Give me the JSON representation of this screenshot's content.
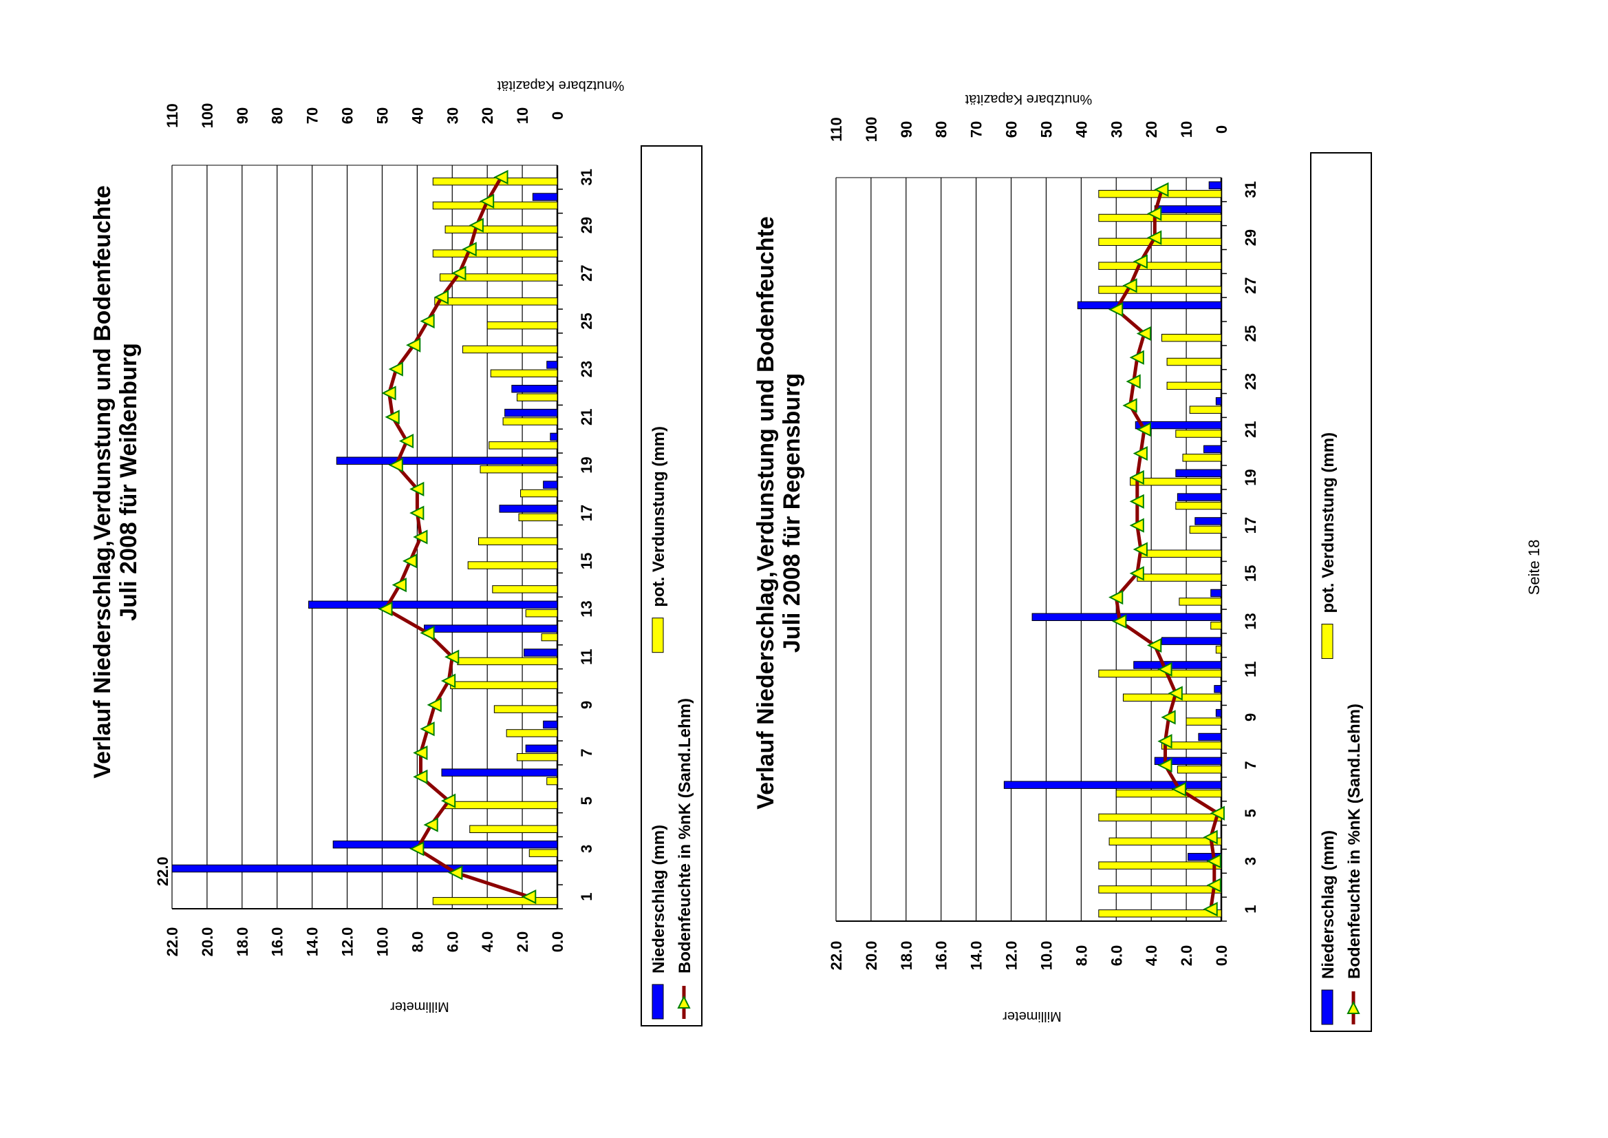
{
  "page_label": "Seite 18",
  "chart_data": [
    {
      "type": "bar",
      "title": "Verlauf Niederschlag,Verdunstung und Bodenfeuchte",
      "subtitle": "Juli 2008 für Weißenburg",
      "xlabel": "",
      "ylabel": "Millimeter",
      "y2label": "%nutzbare Kapazität",
      "ylim": [
        0,
        22
      ],
      "y2lim": [
        0,
        110
      ],
      "y_ticks": [
        "0.0",
        "2.0",
        "4.0",
        "6.0",
        "8.0",
        "10.0",
        "12.0",
        "14.0",
        "16.0",
        "18.0",
        "20.0",
        "22.0"
      ],
      "y2_ticks": [
        "0",
        "10",
        "20",
        "30",
        "40",
        "50",
        "60",
        "70",
        "80",
        "90",
        "100",
        "110"
      ],
      "x_ticks": [
        "1",
        "3",
        "5",
        "7",
        "9",
        "11",
        "13",
        "15",
        "17",
        "19",
        "21",
        "23",
        "25",
        "27",
        "29",
        "31"
      ],
      "annotation": "22.0",
      "x": [
        1,
        2,
        3,
        4,
        5,
        6,
        7,
        8,
        9,
        10,
        11,
        12,
        13,
        14,
        15,
        16,
        17,
        18,
        19,
        20,
        21,
        22,
        23,
        24,
        25,
        26,
        27,
        28,
        29,
        30,
        31
      ],
      "series": [
        {
          "name": "Niederschlag (mm)",
          "kind": "bar",
          "color": "#0000ff",
          "values": [
            0,
            22.0,
            12.8,
            0,
            0,
            6.6,
            1.8,
            0.8,
            0,
            0,
            1.9,
            7.6,
            14.2,
            0,
            0,
            0,
            3.3,
            0.8,
            12.6,
            0.4,
            3.0,
            2.6,
            0.6,
            0,
            0,
            0,
            0,
            0,
            0,
            1.4,
            0
          ]
        },
        {
          "name": "pot. Verdunstung (mm)",
          "kind": "bar",
          "color": "#ffff00",
          "values": [
            7.1,
            0,
            1.6,
            5.0,
            6.4,
            0.6,
            2.3,
            2.9,
            3.6,
            6.1,
            5.7,
            0.9,
            1.8,
            3.7,
            5.1,
            4.5,
            2.2,
            2.1,
            4.4,
            3.9,
            3.1,
            2.3,
            3.8,
            5.4,
            4.0,
            7.0,
            6.7,
            7.1,
            6.4,
            7.1,
            7.1
          ]
        },
        {
          "name": "Bodenfeuchte in %nK (Sand.Lehm)",
          "kind": "line",
          "axis": "y2",
          "color": "#8b0000",
          "marker_color": "#ffff00",
          "values": [
            8,
            29,
            40,
            36,
            31,
            39,
            39,
            37,
            35,
            31,
            30,
            37,
            49,
            45,
            42,
            39,
            40,
            40,
            46,
            43,
            47,
            48,
            46,
            41,
            37,
            33,
            28,
            25,
            23,
            20,
            16
          ]
        }
      ]
    },
    {
      "type": "bar",
      "title": "Verlauf Niederschlag,Verdunstung und Bodenfeuchte",
      "subtitle": "Juli 2008 für Regensburg",
      "xlabel": "",
      "ylabel": "Millimeter",
      "y2label": "%nutzbare Kapazität",
      "ylim": [
        0,
        22
      ],
      "y2lim": [
        0,
        110
      ],
      "y_ticks": [
        "0.0",
        "2.0",
        "4.0",
        "6.0",
        "8.0",
        "10.0",
        "12.0",
        "14.0",
        "16.0",
        "18.0",
        "20.0",
        "22.0"
      ],
      "y2_ticks": [
        "0",
        "10",
        "20",
        "30",
        "40",
        "50",
        "60",
        "70",
        "80",
        "90",
        "100",
        "110"
      ],
      "x_ticks": [
        "1",
        "3",
        "5",
        "7",
        "9",
        "11",
        "13",
        "15",
        "17",
        "19",
        "21",
        "23",
        "25",
        "27",
        "29",
        "31"
      ],
      "x": [
        1,
        2,
        3,
        4,
        5,
        6,
        7,
        8,
        9,
        10,
        11,
        12,
        13,
        14,
        15,
        16,
        17,
        18,
        19,
        20,
        21,
        22,
        23,
        24,
        25,
        26,
        27,
        28,
        29,
        30,
        31
      ],
      "series": [
        {
          "name": "Niederschlag (mm)",
          "kind": "bar",
          "color": "#0000ff",
          "values": [
            0,
            0,
            1.9,
            0,
            0,
            12.4,
            3.8,
            1.3,
            0.3,
            0.4,
            5.0,
            3.4,
            10.8,
            0.6,
            0,
            0,
            1.5,
            2.5,
            2.6,
            1.0,
            4.9,
            0.3,
            0,
            0,
            0,
            8.2,
            0,
            0,
            0,
            3.8,
            0.7
          ]
        },
        {
          "name": "pot. Verdunstung (mm)",
          "kind": "bar",
          "color": "#ffff00",
          "values": [
            7.0,
            7.0,
            7.0,
            6.4,
            7.0,
            6.0,
            2.5,
            3.4,
            2.0,
            5.6,
            7.0,
            0.3,
            0.6,
            2.4,
            4.8,
            4.6,
            1.8,
            2.6,
            5.2,
            2.2,
            2.6,
            1.8,
            3.1,
            3.1,
            3.4,
            0,
            7.0,
            7.0,
            7.0,
            7.0,
            7.0
          ]
        },
        {
          "name": "Bodenfeuchte in %nK (Sand.Lehm)",
          "kind": "line",
          "axis": "y2",
          "color": "#8b0000",
          "marker_color": "#ffff00",
          "values": [
            3,
            2,
            2,
            3,
            1,
            12,
            16,
            16,
            15,
            13,
            16,
            19,
            29,
            30,
            24,
            23,
            24,
            24,
            24,
            23,
            22,
            26,
            25,
            24,
            22,
            30,
            26,
            23,
            19,
            19,
            17
          ]
        }
      ]
    }
  ]
}
